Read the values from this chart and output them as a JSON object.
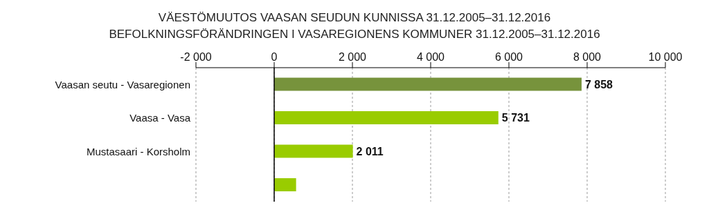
{
  "chart_data": {
    "type": "bar",
    "orientation": "horizontal",
    "title": "VÄESTÖMUUTOS VAASAN SEUDUN KUNNISSA 31.12.2005–31.12.2016",
    "subtitle": "BEFOLKNINGSFÖRÄNDRINGEN I VASAREGIONENS KOMMUNER 31.12.2005–31.12.2016",
    "categories": [
      "Vaasan seutu - Vasaregionen",
      "Vaasa - Vasa",
      "Mustasaari - Korsholm",
      null
    ],
    "values": [
      7858,
      5731,
      2011,
      560
    ],
    "colors": [
      "#77933c",
      "#99cc00",
      "#99cc00",
      "#99cc00"
    ],
    "value_labels": [
      "7 858",
      "5 731",
      "2 011",
      null
    ],
    "xlim": [
      -2000,
      10000
    ],
    "xticks": [
      {
        "value": -2000,
        "label": "-2 000"
      },
      0,
      {
        "value": 2000,
        "label": "2 000"
      },
      {
        "value": 4000,
        "label": "4 000"
      },
      {
        "value": 6000,
        "label": "6 000"
      },
      {
        "value": 8000,
        "label": "8 000"
      },
      {
        "value": 10000,
        "label": "10 000"
      }
    ],
    "grid": "x"
  }
}
